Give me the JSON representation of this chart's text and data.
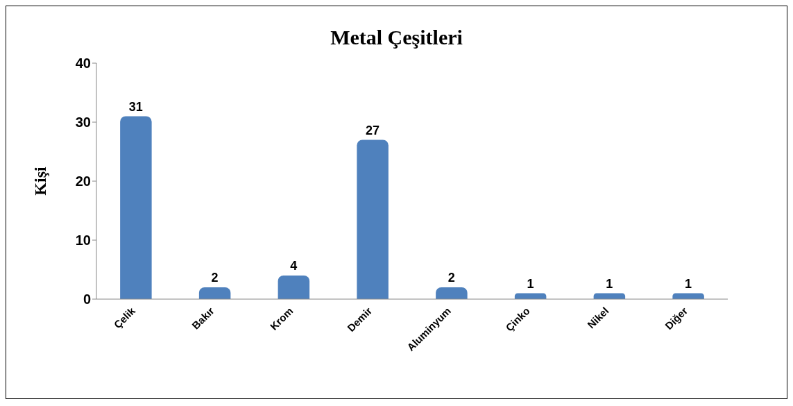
{
  "chart_data": {
    "type": "bar",
    "title": "Metal Çeşitleri",
    "ylabel": "Kişi",
    "categories": [
      "Çelik",
      "Bakır",
      "Krom",
      "Demir",
      "Aluminyum",
      "Çinko",
      "Nikel",
      "Diğer"
    ],
    "values": [
      31,
      2,
      4,
      27,
      2,
      1,
      1,
      1
    ],
    "color": "#4f81bd",
    "ylim": [
      0,
      40
    ],
    "yticks": [
      0,
      10,
      20,
      30,
      40
    ],
    "grid": false,
    "legend": false,
    "data_labels": true
  }
}
